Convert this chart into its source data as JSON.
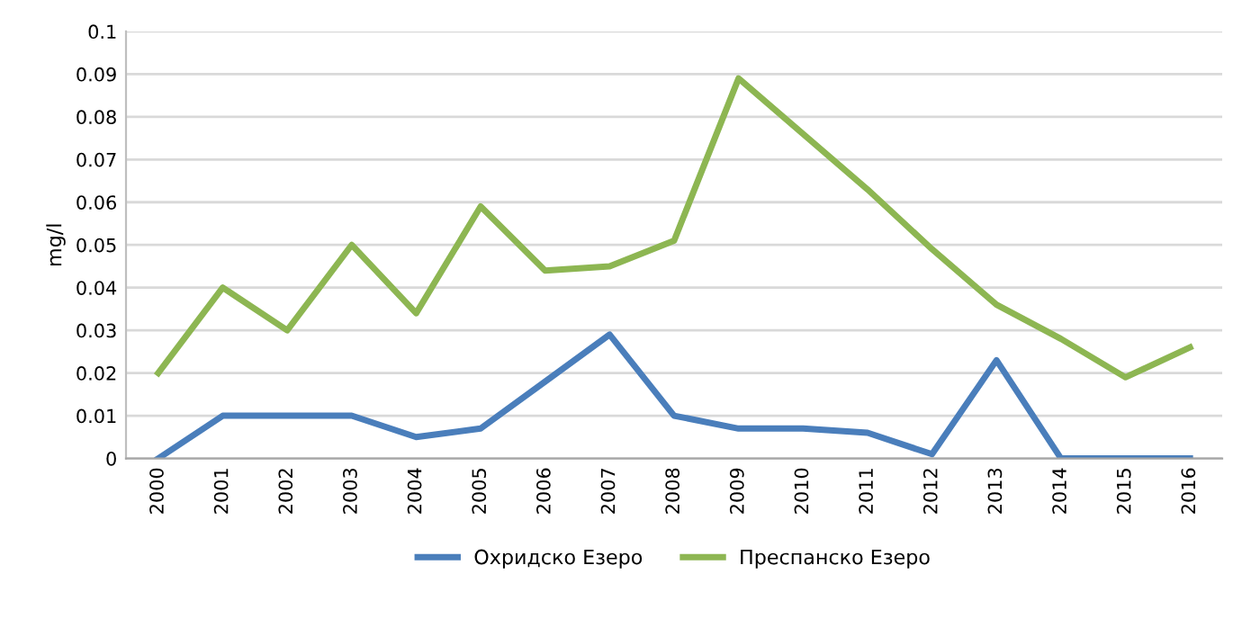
{
  "chart_data": {
    "type": "line",
    "ylabel": "mg/l",
    "categories": [
      "2000",
      "2001",
      "2002",
      "2003",
      "2004",
      "2005",
      "2006",
      "2007",
      "2008",
      "2009",
      "2010",
      "2011",
      "2012",
      "2013",
      "2014",
      "2015",
      "2016"
    ],
    "series": [
      {
        "name": "Охридско Езеро",
        "color": "#4a7ebb",
        "values": [
          0,
          0.01,
          0.01,
          0.01,
          0.005,
          0.007,
          0.018,
          0.029,
          0.01,
          0.007,
          0.007,
          0.006,
          0.001,
          0.023,
          0,
          0,
          0
        ]
      },
      {
        "name": "Преспанско Езеро",
        "color": "#8db652",
        "values": [
          0.02,
          0.04,
          0.03,
          0.05,
          0.034,
          0.059,
          0.044,
          0.045,
          0.051,
          0.089,
          0.076,
          0.063,
          0.049,
          0.036,
          0.028,
          0.019,
          0.026
        ]
      }
    ],
    "ylim": [
      0,
      0.1
    ],
    "yticks": [
      0,
      0.01,
      0.02,
      0.03,
      0.04,
      0.05,
      0.06,
      0.07,
      0.08,
      0.09,
      0.1
    ],
    "grid": "y",
    "legend": "bottom",
    "marker": "none",
    "line_style": "solid"
  }
}
